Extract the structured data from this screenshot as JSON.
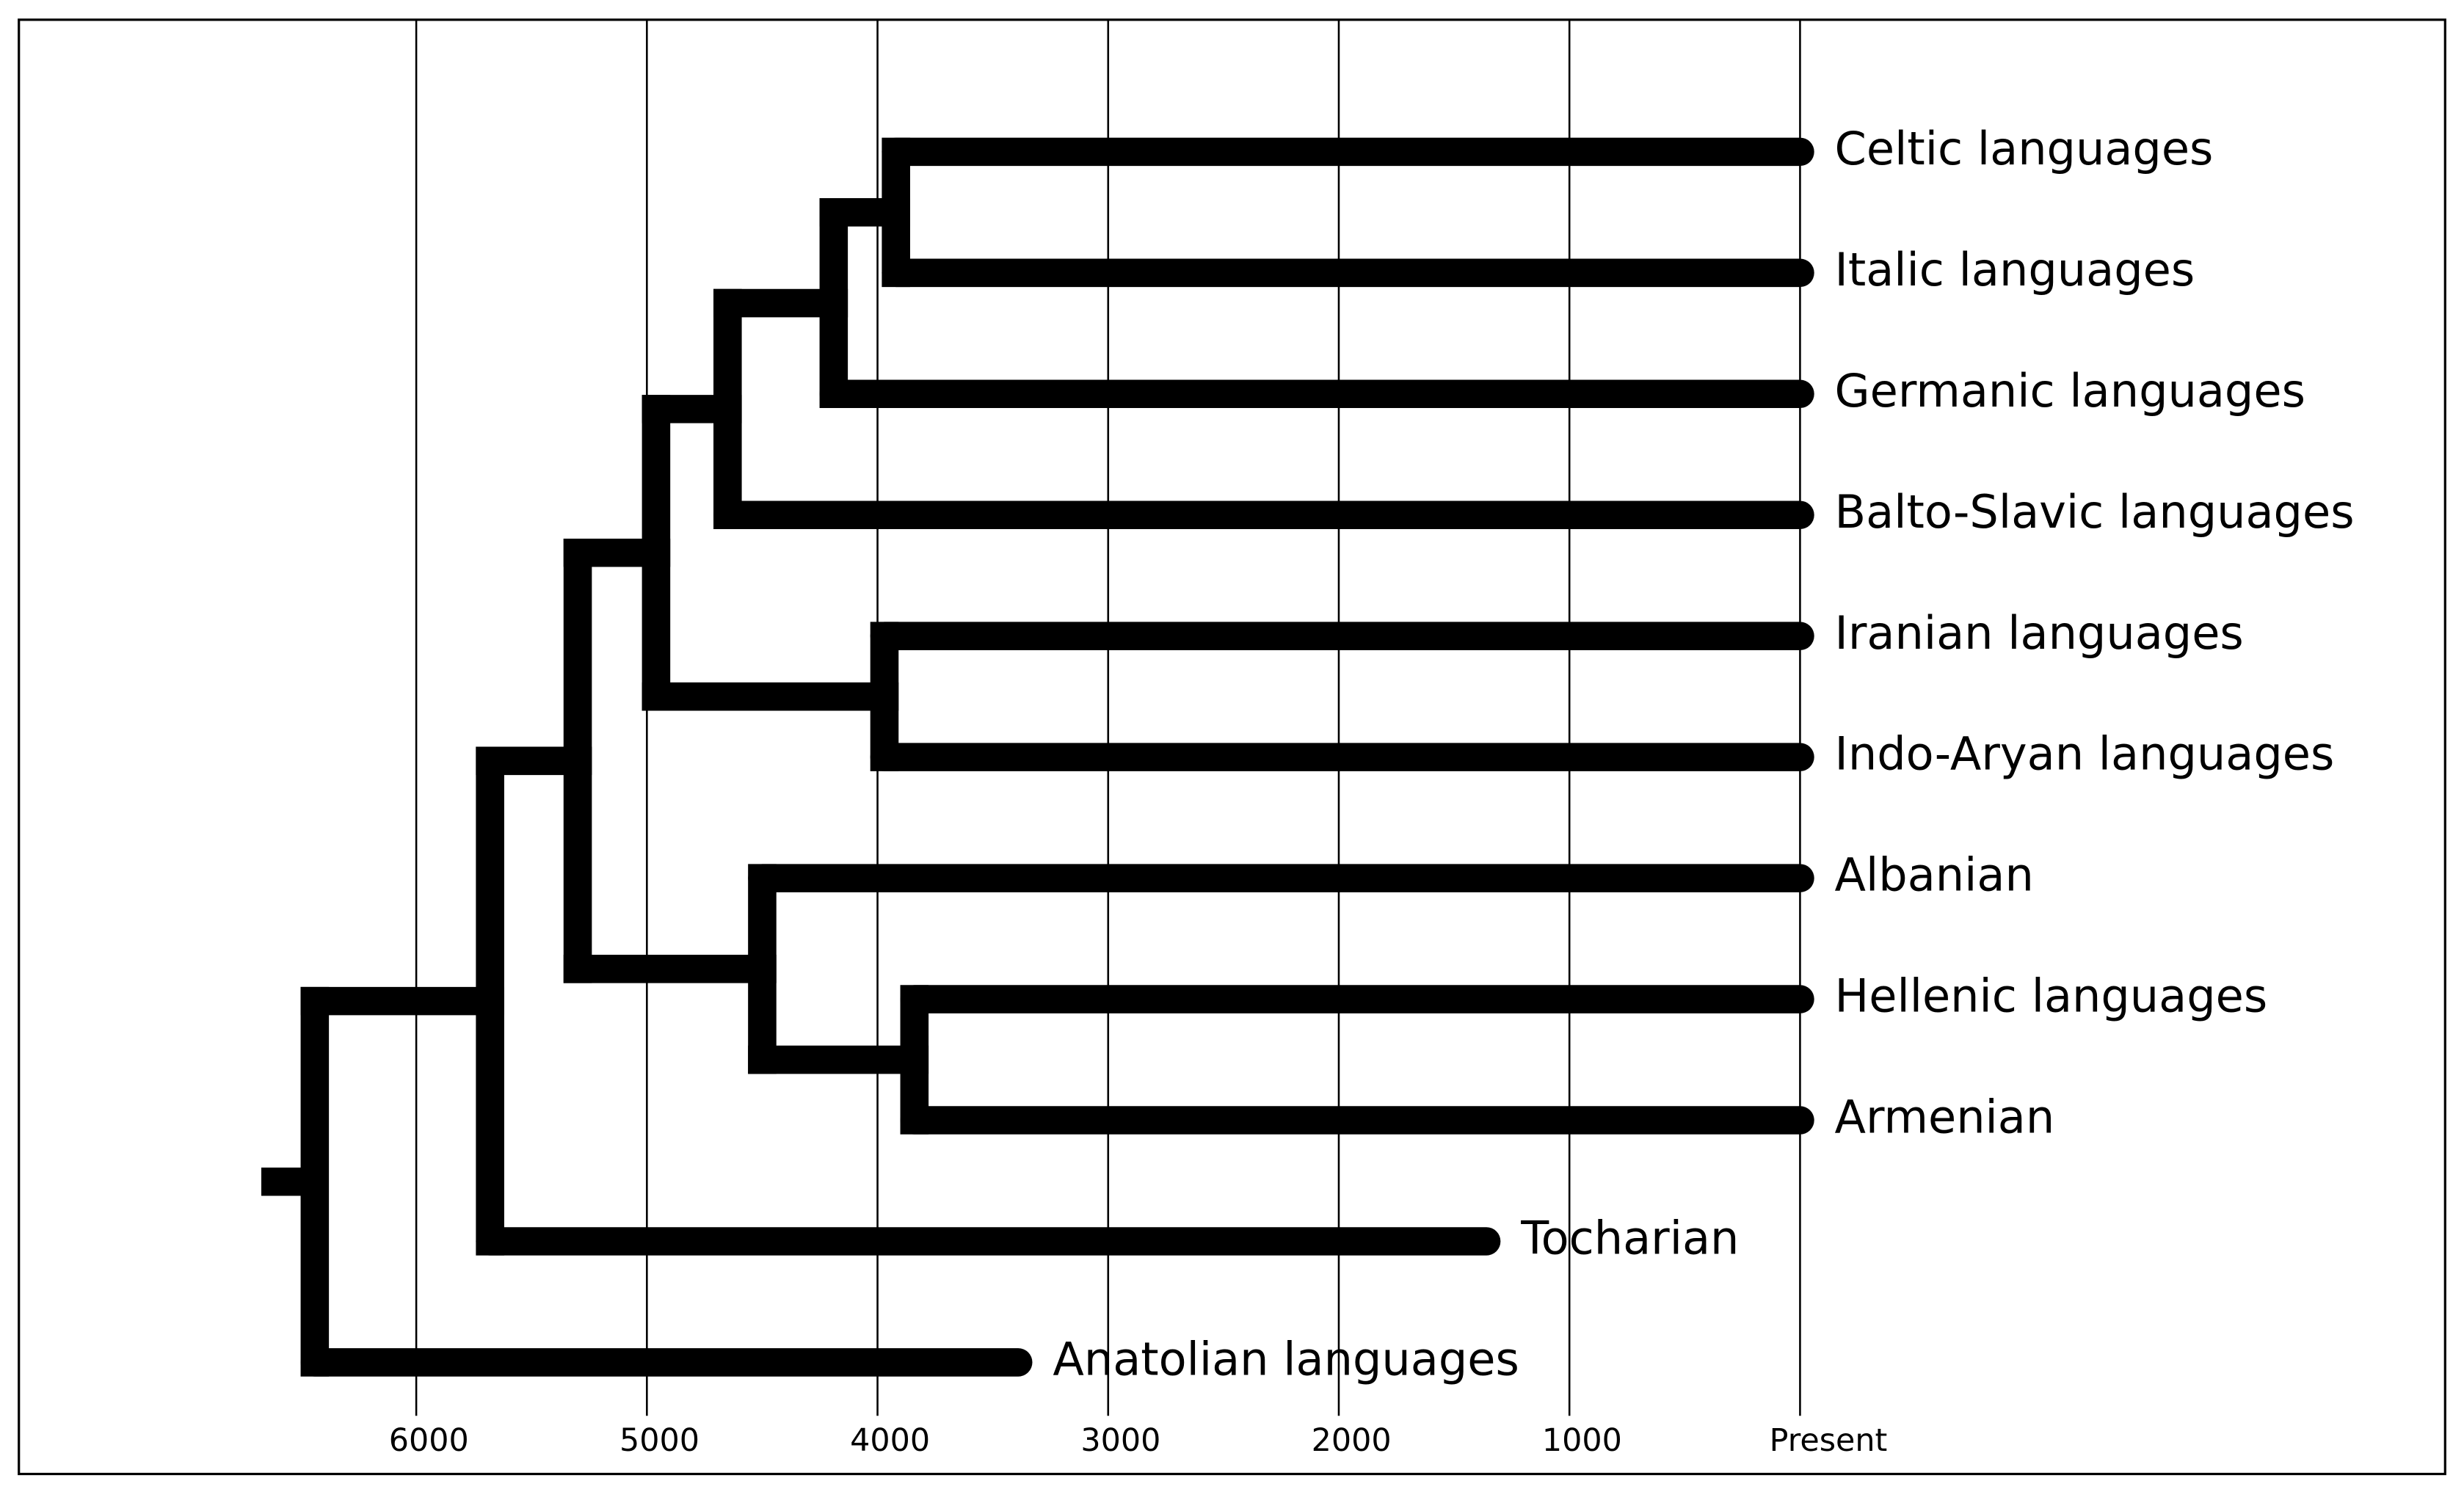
{
  "chart_data": {
    "type": "dendrogram",
    "xlim": [
      7723,
      -2797
    ],
    "xticks": [
      6000,
      5000,
      4000,
      3000,
      2000,
      1000,
      {
        "value": 0,
        "label": "Present"
      }
    ],
    "grid": true,
    "color": "#000000",
    "tree": {
      "time": 6440,
      "children": [
        {
          "time": 5680,
          "children": [
            {
              "time": 5300,
              "children": [
                {
                  "time": 4960,
                  "children": [
                    {
                      "time": 4650,
                      "children": [
                        {
                          "time": 4190,
                          "children": [
                            {
                              "time": 3920,
                              "children": [
                                {
                                  "name": "Celtic languages",
                                  "time": 0
                                },
                                {
                                  "name": "Italic languages",
                                  "time": 0
                                }
                              ]
                            },
                            {
                              "name": "Germanic languages",
                              "time": 0
                            }
                          ]
                        },
                        {
                          "name": "Balto-Slavic languages",
                          "time": 0
                        }
                      ]
                    },
                    {
                      "time": 3970,
                      "children": [
                        {
                          "name": "Iranian languages",
                          "time": 0
                        },
                        {
                          "name": "Indo-Aryan languages",
                          "time": 0
                        }
                      ]
                    }
                  ]
                },
                {
                  "time": 4500,
                  "children": [
                    {
                      "name": "Albanian",
                      "time": 0
                    },
                    {
                      "time": 3840,
                      "children": [
                        {
                          "name": "Hellenic languages",
                          "time": 0
                        },
                        {
                          "name": "Armenian",
                          "time": 0
                        }
                      ]
                    }
                  ]
                }
              ]
            },
            {
              "name": "Tocharian",
              "time": 1360
            }
          ]
        },
        {
          "name": "Anatolian languages",
          "time": 3390
        }
      ]
    }
  }
}
